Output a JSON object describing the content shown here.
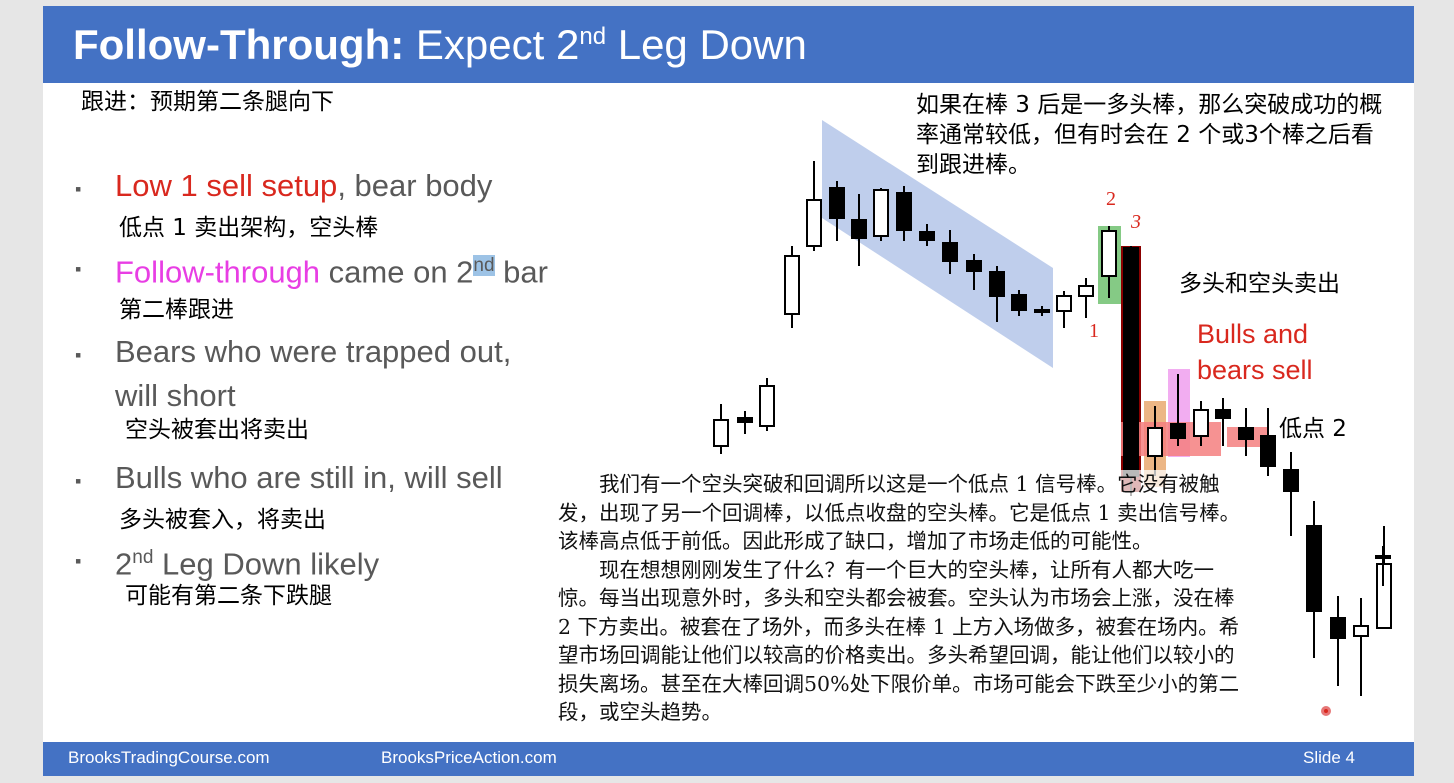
{
  "slide": {
    "title_bold": "Follow-Through:",
    "title_rest": " Expect 2",
    "title_sup": "nd",
    "title_end": " Leg Down",
    "subtitle_cn": "跟进：预期第二条腿向下"
  },
  "bullets": [
    {
      "marker": "▪",
      "highlight": "Low 1 sell setup",
      "text": ", bear body",
      "cn": "低点 1 卖出架构，空头棒"
    },
    {
      "marker": "▪",
      "highlight": "Follow-through",
      "text": " came on 2",
      "sup": "nd",
      "text_after": " bar",
      "cn": "第二棒跟进"
    },
    {
      "marker": "▪",
      "text": "Bears who were trapped out,",
      "text2": "will short",
      "cn": "空头被套出将卖出"
    },
    {
      "marker": "▪",
      "text": "Bulls who are still in, will sell",
      "cn": "多头被套入，将卖出"
    },
    {
      "marker": "▪",
      "text": "2",
      "sup": "nd",
      "text_after": " Leg Down likely",
      "cn": "可能有第二条下跌腿"
    }
  ],
  "chart": {
    "note_cn": "如果在棒 3 后是一多头棒，那么突破成功的概率通常较低，但有时会在 2 个或3个棒之后看到跟进棒。",
    "bulls_bears_cn": "多头和空头卖出",
    "bulls_bears_en": "Bulls and bears sell",
    "low2_cn": "低点 2",
    "labels": {
      "one": "1",
      "two": "2",
      "three": "3"
    },
    "colors": {
      "channel": "#a9bde6",
      "green": "#5cb85c",
      "dark_red": "#8b0000",
      "orange": "#e7a467",
      "magenta": "#e86ae6",
      "pink": "#f47f7f"
    }
  },
  "paragraph": {
    "p1": "我们有一个空头突破和回调所以这是一个低点 1 信号棒。它没有被触发，出现了另一个回调棒，以低点收盘的空头棒。它是低点 1 卖出信号棒。该棒高点低于前低。因此形成了缺口，增加了市场走低的可能性。",
    "p2": "现在想想刚刚发生了什么？有一个巨大的空头棒，让所有人都大吃一惊。每当出现意外时，多头和空头都会被套。空头认为市场会上涨，没在棒 2 下方卖出。被套在了场外，而多头在棒 1 上方入场做多，被套在场内。希望市场回调能让他们以较高的价格卖出。多头希望回调，能让他们以较小的损失离场。甚至在大棒回调50%处下限价单。市场可能会下跌至少小的第二段，或空头趋势。"
  },
  "footer": {
    "left": "BrooksTradingCourse.com",
    "center": "BrooksPriceAction.com",
    "slide": "Slide  4"
  }
}
